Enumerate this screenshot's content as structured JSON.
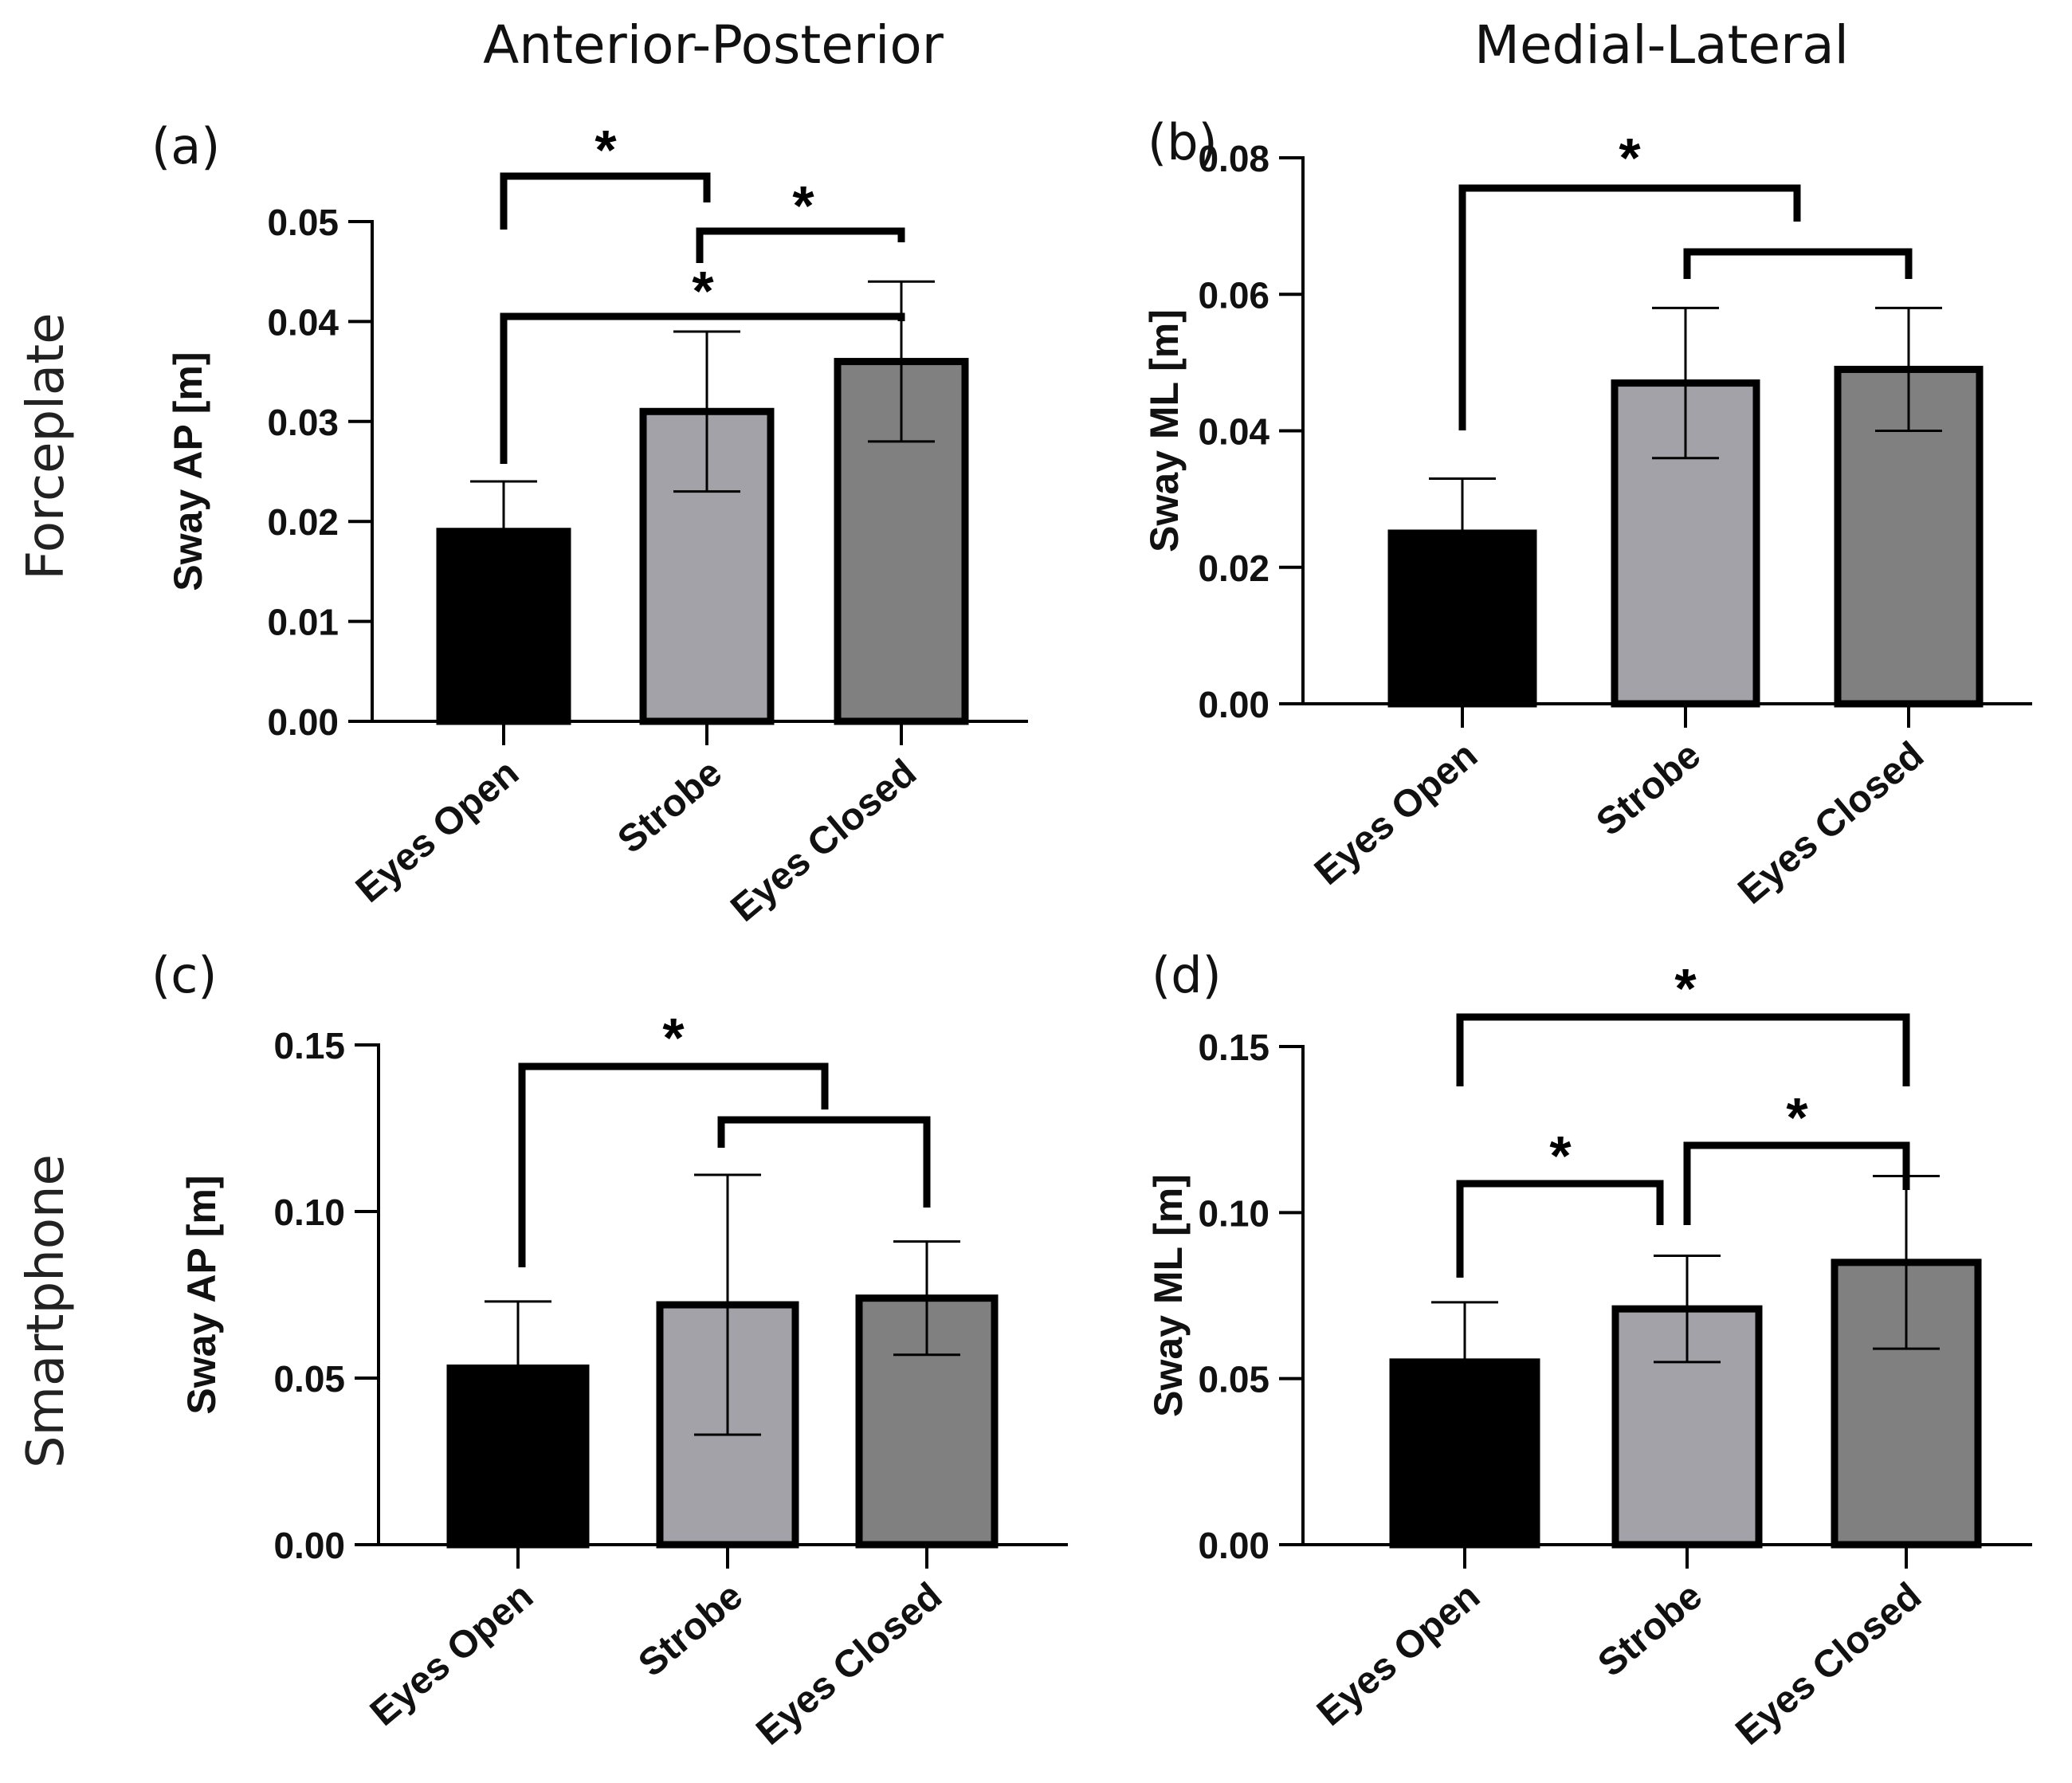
{
  "figure": {
    "col_titles": [
      "Anterior-Posterior",
      "Medial-Lateral"
    ],
    "row_titles": [
      "Forceplate",
      "Smartphone"
    ],
    "bar_colors": [
      "#000000",
      "#a3a2a8",
      "#808080"
    ],
    "outline_color": "#000000"
  },
  "chart_data": [
    {
      "type": "bar",
      "panel_label": "(a)",
      "title": "",
      "xlabel": "",
      "ylabel": "Sway AP [m]",
      "categories": [
        "Eyes Open",
        "Strobe",
        "Eyes Closed"
      ],
      "values": [
        0.019,
        0.031,
        0.036
      ],
      "error": [
        0.005,
        0.008,
        0.008
      ],
      "ylim": [
        0,
        0.05
      ],
      "yticks": [
        "0.00",
        "0.01",
        "0.02",
        "0.03",
        "0.04",
        "0.05"
      ],
      "significance": [
        {
          "from": 0,
          "to": 1,
          "label": "*"
        },
        {
          "from": 1,
          "to": 2,
          "label": "*"
        },
        {
          "from": 0,
          "to": 2,
          "label": "*"
        }
      ]
    },
    {
      "type": "bar",
      "panel_label": "(b)",
      "title": "",
      "xlabel": "",
      "ylabel": "Sway ML [m]",
      "categories": [
        "Eyes Open",
        "Strobe",
        "Eyes Closed"
      ],
      "values": [
        0.025,
        0.047,
        0.049
      ],
      "error": [
        0.008,
        0.011,
        0.009
      ],
      "ylim": [
        0,
        0.08
      ],
      "yticks": [
        "0.00",
        "0.02",
        "0.04",
        "0.06",
        "0.08"
      ],
      "significance": [
        {
          "from": 0,
          "to": 1,
          "label": "*"
        },
        {
          "from": 1,
          "to": 2,
          "label": ""
        }
      ]
    },
    {
      "type": "bar",
      "panel_label": "(c)",
      "title": "",
      "xlabel": "",
      "ylabel": "Sway  AP [m]",
      "categories": [
        "Eyes Open",
        "Strobe",
        "Eyes Closed"
      ],
      "values": [
        0.053,
        0.072,
        0.074
      ],
      "error": [
        0.02,
        0.039,
        0.017
      ],
      "ylim": [
        0,
        0.15
      ],
      "yticks": [
        "0.00",
        "0.05",
        "0.10",
        "0.15"
      ],
      "significance": [
        {
          "from": 0,
          "to": 1,
          "label": "*"
        },
        {
          "from": 1,
          "to": 2,
          "label": ""
        }
      ]
    },
    {
      "type": "bar",
      "panel_label": "(d)",
      "title": "",
      "xlabel": "",
      "ylabel": "Sway ML [m]",
      "categories": [
        "Eyes Open",
        "Strobe",
        "Eyes Closed"
      ],
      "values": [
        0.055,
        0.071,
        0.085
      ],
      "error": [
        0.018,
        0.016,
        0.026
      ],
      "ylim": [
        0,
        0.15
      ],
      "yticks": [
        "0.00",
        "0.05",
        "0.10",
        "0.15"
      ],
      "significance": [
        {
          "from": 0,
          "to": 2,
          "label": "*"
        },
        {
          "from": 0,
          "to": 1,
          "label": "*"
        },
        {
          "from": 1,
          "to": 2,
          "label": "*"
        }
      ]
    }
  ]
}
